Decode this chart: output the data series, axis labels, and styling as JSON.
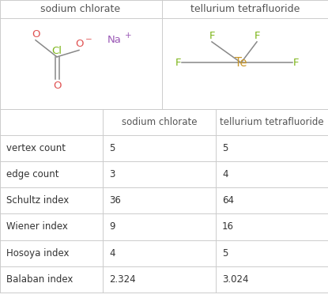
{
  "col_headers": [
    "",
    "sodium chlorate",
    "tellurium tetrafluoride"
  ],
  "rows": [
    [
      "vertex count",
      "5",
      "5"
    ],
    [
      "edge count",
      "3",
      "4"
    ],
    [
      "Schultz index",
      "36",
      "64"
    ],
    [
      "Wiener index",
      "9",
      "16"
    ],
    [
      "Hosoya index",
      "4",
      "5"
    ],
    [
      "Balaban index",
      "2.324",
      "3.024"
    ]
  ],
  "bg_color": "#ffffff",
  "border_color": "#cccccc",
  "header_text_color": "#555555",
  "cell_text_color": "#333333",
  "font_size": 8.5,
  "Cl_color": "#7cb518",
  "O_color": "#e05252",
  "Na_color": "#9b59b6",
  "Te_color": "#c8962a",
  "F_color": "#7cb518",
  "bond_color": "#888888"
}
